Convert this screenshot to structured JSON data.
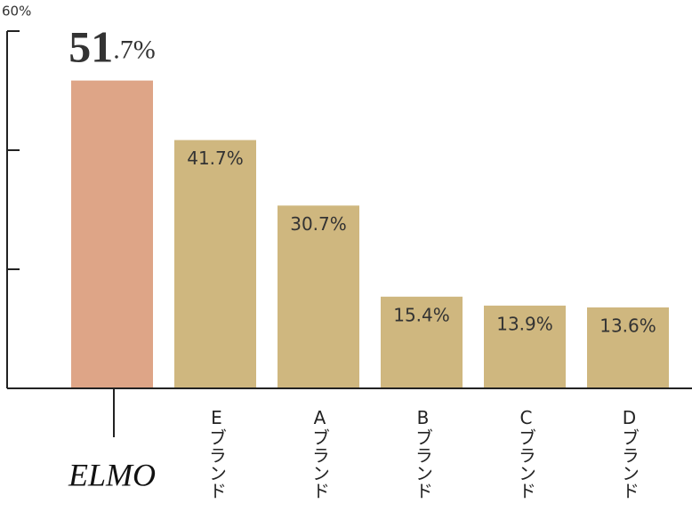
{
  "chart_data": {
    "type": "bar",
    "categories": [
      "ELMO",
      "Eブランド",
      "Aブランド",
      "Bブランド",
      "Cブランド",
      "Dブランド"
    ],
    "values": [
      51.7,
      41.7,
      30.7,
      15.4,
      13.9,
      13.6
    ],
    "value_labels": [
      "51.7%",
      "41.7%",
      "30.7%",
      "15.4%",
      "13.9%",
      "13.6%"
    ],
    "colors": [
      "#dea587",
      "#cfb77f",
      "#cfb77f",
      "#cfb77f",
      "#cfb77f",
      "#cfb77f"
    ],
    "ylim": [
      0,
      60
    ],
    "yticks": [
      {
        "value": 0,
        "label": null
      },
      {
        "value": 20,
        "label": null
      },
      {
        "value": 40,
        "label": null
      },
      {
        "value": 60,
        "label": "60%"
      }
    ]
  }
}
